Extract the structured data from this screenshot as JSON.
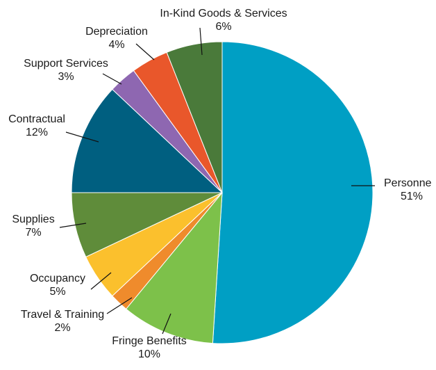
{
  "chart_data": {
    "type": "pie",
    "start": "12 o'clock",
    "direction": "clockwise",
    "slices": [
      {
        "label": "Personne",
        "value": 51,
        "display": "51%",
        "color": "#009fc4"
      },
      {
        "label": "Fringe Benefits",
        "value": 10,
        "display": "10%",
        "color": "#7dc14a"
      },
      {
        "label": "Travel & Training",
        "value": 2,
        "display": "2%",
        "color": "#ef8b2c"
      },
      {
        "label": "Occupancy",
        "value": 5,
        "display": "5%",
        "color": "#fbc02d"
      },
      {
        "label": "Supplies",
        "value": 7,
        "display": "7%",
        "color": "#5f8c3a"
      },
      {
        "label": "Contractual",
        "value": 12,
        "display": "12%",
        "color": "#005f80"
      },
      {
        "label": "Support Services",
        "value": 3,
        "display": "3%",
        "color": "#8e67b1"
      },
      {
        "label": "Depreciation",
        "value": 4,
        "display": "4%",
        "color": "#e9572b"
      },
      {
        "label": "In-Kind Goods & Services",
        "value": 6,
        "display": "6%",
        "color": "#4a7a3a"
      }
    ]
  }
}
